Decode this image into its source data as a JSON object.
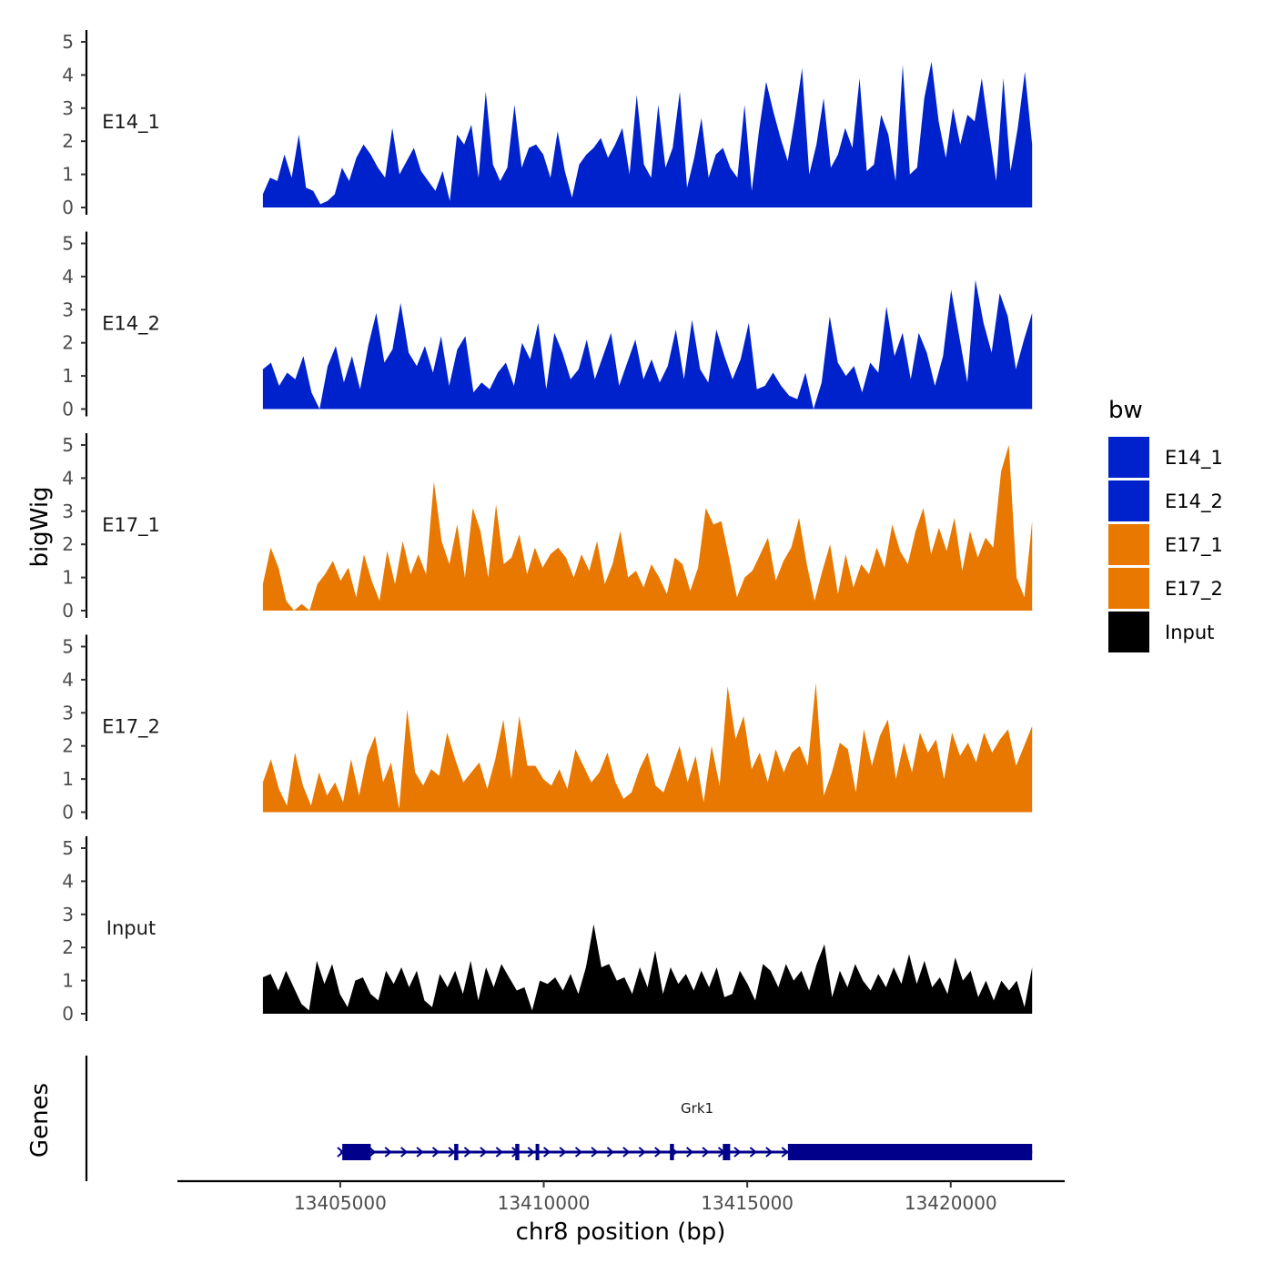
{
  "chart_data": {
    "type": "area",
    "ylabel": "bigWig",
    "xlabel": "chr8 position (bp)",
    "xlim": [
      13401000,
      13422800
    ],
    "data_range": [
      13403100,
      13422000
    ],
    "ylim": [
      0,
      5
    ],
    "yticks": [
      "0",
      "1",
      "2",
      "3",
      "4",
      "5"
    ],
    "xticks": [
      13405000,
      13410000,
      13415000,
      13420000
    ],
    "xtick_labels": [
      "13405000",
      "13410000",
      "13415000",
      "13420000"
    ],
    "legend": {
      "title": "bw",
      "position": "right",
      "entries": [
        {
          "name": "E14_1",
          "color": "#0022CC"
        },
        {
          "name": "E14_2",
          "color": "#0022CC"
        },
        {
          "name": "E17_1",
          "color": "#E87800"
        },
        {
          "name": "E17_2",
          "color": "#E87800"
        },
        {
          "name": "Input",
          "color": "#000000"
        }
      ]
    },
    "series": [
      {
        "name": "E14_1",
        "color": "#0022CC",
        "values": [
          0.4,
          0.9,
          0.8,
          1.6,
          0.9,
          2.2,
          0.6,
          0.5,
          0.1,
          0.2,
          0.4,
          1.2,
          0.8,
          1.5,
          1.9,
          1.6,
          1.2,
          0.9,
          2.4,
          1.0,
          1.4,
          1.8,
          1.1,
          0.8,
          0.5,
          1.1,
          0.2,
          2.2,
          1.9,
          2.5,
          0.9,
          3.5,
          1.3,
          0.8,
          1.2,
          3.1,
          1.2,
          1.8,
          1.9,
          1.6,
          0.9,
          2.3,
          1.1,
          0.3,
          1.3,
          1.6,
          1.8,
          2.1,
          1.5,
          1.9,
          2.4,
          1.0,
          3.4,
          1.3,
          0.9,
          3.1,
          1.2,
          1.8,
          3.5,
          0.6,
          1.5,
          2.7,
          0.9,
          1.6,
          1.8,
          1.2,
          0.9,
          3.1,
          0.5,
          2.3,
          3.8,
          2.9,
          2.1,
          1.4,
          2.7,
          4.2,
          1.0,
          1.9,
          3.3,
          1.2,
          1.6,
          2.4,
          1.8,
          3.9,
          1.1,
          1.3,
          2.8,
          2.2,
          0.8,
          4.3,
          1.0,
          1.2,
          3.3,
          4.4,
          2.6,
          1.5,
          3.0,
          1.9,
          2.8,
          2.6,
          3.9,
          2.3,
          0.8,
          3.9,
          1.1,
          2.4,
          4.1,
          1.9
        ]
      },
      {
        "name": "E14_2",
        "color": "#0022CC",
        "values": [
          1.2,
          1.4,
          0.7,
          1.1,
          0.9,
          1.6,
          0.5,
          0.0,
          1.3,
          1.9,
          0.8,
          1.6,
          0.6,
          1.9,
          2.9,
          1.4,
          1.8,
          3.2,
          1.7,
          1.3,
          1.9,
          1.1,
          2.2,
          0.7,
          1.8,
          2.2,
          0.5,
          0.8,
          0.6,
          1.1,
          1.4,
          0.7,
          2.0,
          1.5,
          2.6,
          0.6,
          2.3,
          1.7,
          0.9,
          1.2,
          2.1,
          0.9,
          1.6,
          2.3,
          0.7,
          1.4,
          2.1,
          0.9,
          1.5,
          0.8,
          1.3,
          2.4,
          0.9,
          2.7,
          1.2,
          0.8,
          2.4,
          1.6,
          0.9,
          1.5,
          2.6,
          0.6,
          0.7,
          1.1,
          0.7,
          0.4,
          0.3,
          1.1,
          0.0,
          0.8,
          2.8,
          1.4,
          1.0,
          1.3,
          0.5,
          1.4,
          1.1,
          3.1,
          1.6,
          2.3,
          0.9,
          2.3,
          1.7,
          0.7,
          1.6,
          3.6,
          2.2,
          0.8,
          3.9,
          2.6,
          1.7,
          3.5,
          2.8,
          1.2,
          2.1,
          2.9
        ]
      },
      {
        "name": "E17_1",
        "color": "#E87800",
        "values": [
          0.8,
          1.9,
          1.3,
          0.3,
          0.0,
          0.2,
          0.0,
          0.8,
          1.1,
          1.5,
          0.9,
          1.3,
          0.4,
          1.7,
          0.9,
          0.3,
          1.8,
          0.8,
          2.1,
          1.1,
          1.7,
          1.1,
          3.9,
          2.1,
          1.4,
          2.6,
          1.0,
          3.1,
          2.4,
          1.0,
          3.2,
          1.4,
          1.6,
          2.3,
          1.1,
          1.9,
          1.3,
          1.7,
          1.9,
          1.6,
          1.0,
          1.7,
          1.2,
          2.1,
          0.8,
          1.4,
          2.4,
          1.0,
          1.2,
          0.7,
          1.4,
          1.0,
          0.5,
          1.6,
          1.4,
          0.6,
          1.3,
          3.1,
          2.6,
          2.7,
          1.6,
          0.4,
          1.0,
          1.2,
          1.7,
          2.2,
          0.9,
          1.5,
          1.9,
          2.8,
          1.4,
          0.3,
          1.2,
          2.0,
          0.5,
          1.7,
          0.7,
          1.4,
          1.1,
          1.9,
          1.3,
          2.6,
          1.8,
          1.4,
          2.4,
          3.1,
          1.7,
          2.5,
          1.8,
          2.8,
          1.2,
          2.4,
          1.6,
          2.2,
          1.9,
          4.2,
          5.0,
          1.0,
          0.4,
          2.7
        ]
      },
      {
        "name": "E17_2",
        "color": "#E87800",
        "values": [
          0.9,
          1.6,
          0.7,
          0.2,
          1.8,
          0.8,
          0.2,
          1.2,
          0.5,
          0.9,
          0.3,
          1.6,
          0.5,
          1.7,
          2.3,
          0.9,
          1.5,
          0.1,
          3.1,
          1.2,
          0.8,
          1.3,
          1.1,
          2.4,
          1.6,
          0.9,
          1.2,
          1.5,
          0.7,
          1.6,
          2.8,
          1.0,
          2.9,
          1.4,
          1.4,
          1.0,
          0.8,
          1.3,
          0.7,
          1.9,
          1.4,
          0.9,
          1.2,
          1.8,
          0.9,
          0.4,
          0.6,
          1.3,
          1.8,
          0.8,
          0.6,
          1.3,
          2.0,
          0.9,
          1.7,
          0.3,
          2.0,
          0.8,
          3.8,
          2.2,
          2.9,
          1.3,
          1.8,
          0.9,
          1.9,
          1.2,
          1.8,
          2.0,
          1.4,
          3.9,
          0.5,
          1.2,
          2.1,
          1.9,
          0.6,
          2.5,
          1.4,
          2.3,
          2.8,
          1.0,
          2.1,
          1.2,
          2.4,
          1.8,
          2.2,
          1.0,
          2.4,
          1.7,
          2.1,
          1.5,
          2.4,
          1.8,
          2.2,
          2.5,
          1.4,
          2.0,
          2.6
        ]
      },
      {
        "name": "Input",
        "color": "#000000",
        "values": [
          1.1,
          1.2,
          0.7,
          1.3,
          0.8,
          0.3,
          0.1,
          1.6,
          0.9,
          1.5,
          0.6,
          0.2,
          1.0,
          1.1,
          0.6,
          0.4,
          1.3,
          0.9,
          1.4,
          0.8,
          1.3,
          0.4,
          0.2,
          1.2,
          0.8,
          1.3,
          0.6,
          1.6,
          0.4,
          1.4,
          0.8,
          1.5,
          1.1,
          0.7,
          0.8,
          0.1,
          1.0,
          0.9,
          1.1,
          0.7,
          1.2,
          0.6,
          1.4,
          2.7,
          1.4,
          1.5,
          1.0,
          1.1,
          0.6,
          1.4,
          0.8,
          1.9,
          0.6,
          1.4,
          0.9,
          1.2,
          0.7,
          1.3,
          0.8,
          1.4,
          0.5,
          0.6,
          1.3,
          0.9,
          0.4,
          1.5,
          1.3,
          0.8,
          1.5,
          1.0,
          1.3,
          0.7,
          1.5,
          2.1,
          0.5,
          1.3,
          0.8,
          1.5,
          1.0,
          0.7,
          1.2,
          0.8,
          1.4,
          0.9,
          1.8,
          0.9,
          1.6,
          0.8,
          1.1,
          0.6,
          1.7,
          1.0,
          1.3,
          0.5,
          1.0,
          0.4,
          1.0,
          0.7,
          1.0,
          0.2,
          1.4
        ]
      }
    ],
    "gene_track": {
      "label": "Genes",
      "gene_name": "Grk1",
      "start": 13405000,
      "end": 13422000,
      "strand": "+",
      "color": "#00008B",
      "exons": [
        [
          13405050,
          13405750
        ],
        [
          13407800,
          13407900
        ],
        [
          13409300,
          13409400
        ],
        [
          13409800,
          13409850
        ],
        [
          13413100,
          13413200
        ],
        [
          13414400,
          13414580
        ],
        [
          13416000,
          13422000
        ]
      ]
    }
  }
}
